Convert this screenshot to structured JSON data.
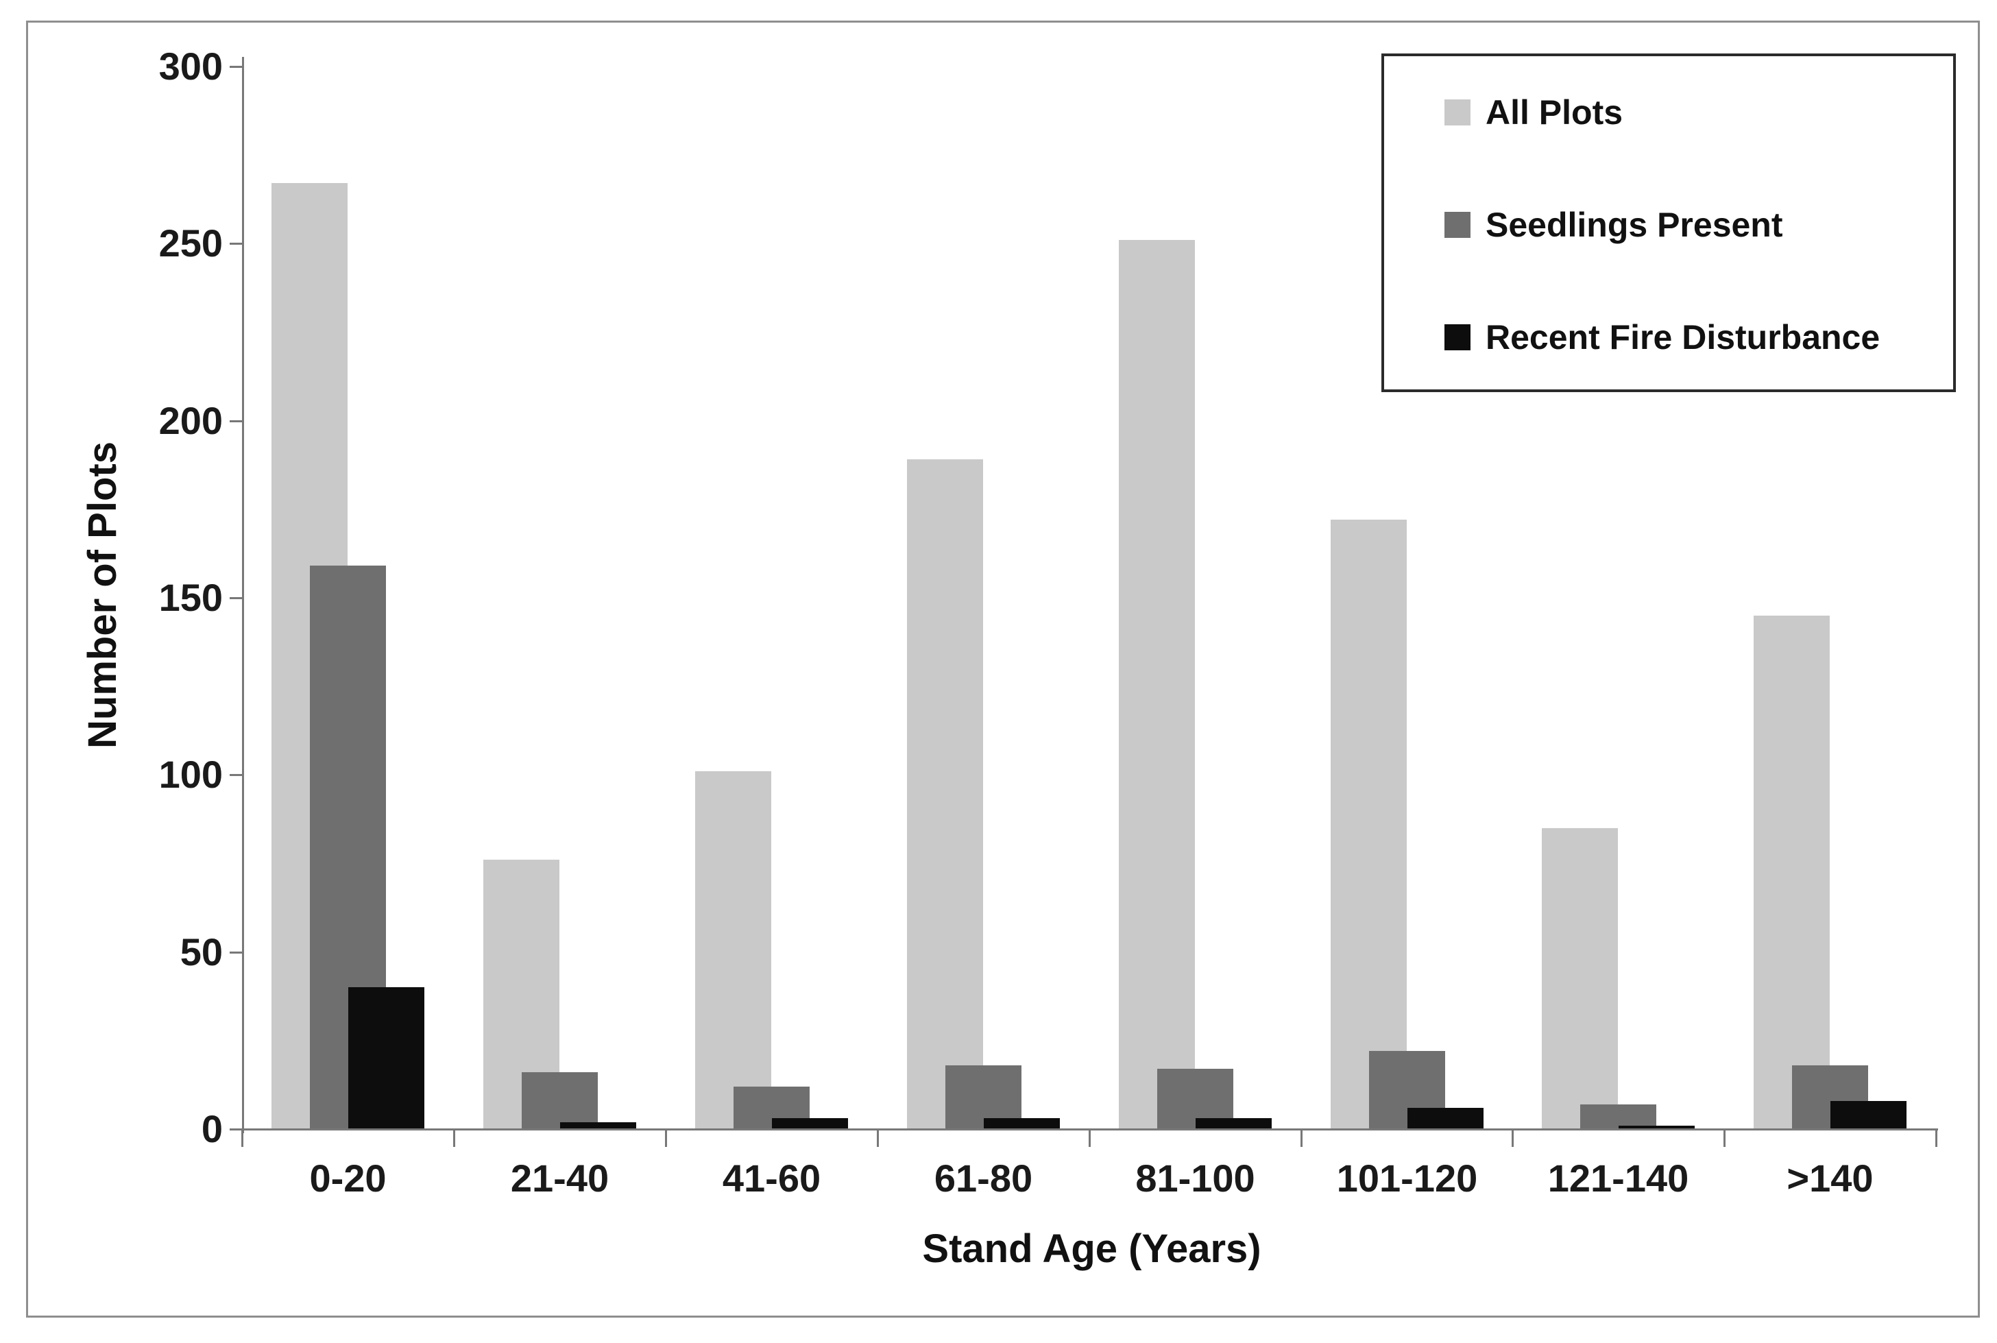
{
  "chart_data": {
    "type": "bar",
    "title": "",
    "xlabel": "Stand Age (Years)",
    "ylabel": "Number of Plots",
    "categories": [
      "0-20",
      "21-40",
      "41-60",
      "61-80",
      "81-100",
      "101-120",
      "121-140",
      ">140"
    ],
    "series": [
      {
        "name": "All Plots",
        "color": "#c9c9c9",
        "values": [
          267,
          76,
          101,
          189,
          251,
          172,
          85,
          145
        ]
      },
      {
        "name": "Seedlings Present",
        "color": "#6f6f6f",
        "values": [
          159,
          16,
          12,
          18,
          17,
          22,
          7,
          18
        ]
      },
      {
        "name": "Recent Fire Disturbance",
        "color": "#0d0d0d",
        "values": [
          40,
          2,
          3,
          3,
          3,
          6,
          1,
          8
        ]
      }
    ],
    "ylim": [
      0,
      300
    ],
    "yticks": [
      0,
      50,
      100,
      150,
      200,
      250,
      300
    ],
    "grid": false,
    "legend_position": "top-right",
    "bar_style": "overlapped"
  },
  "colors": {
    "background": "#ffffff",
    "axis": "#787878",
    "tick_label": "#1a1a1a",
    "figure_border": "#8f8f8f",
    "legend_border": "#2b2b2b"
  }
}
